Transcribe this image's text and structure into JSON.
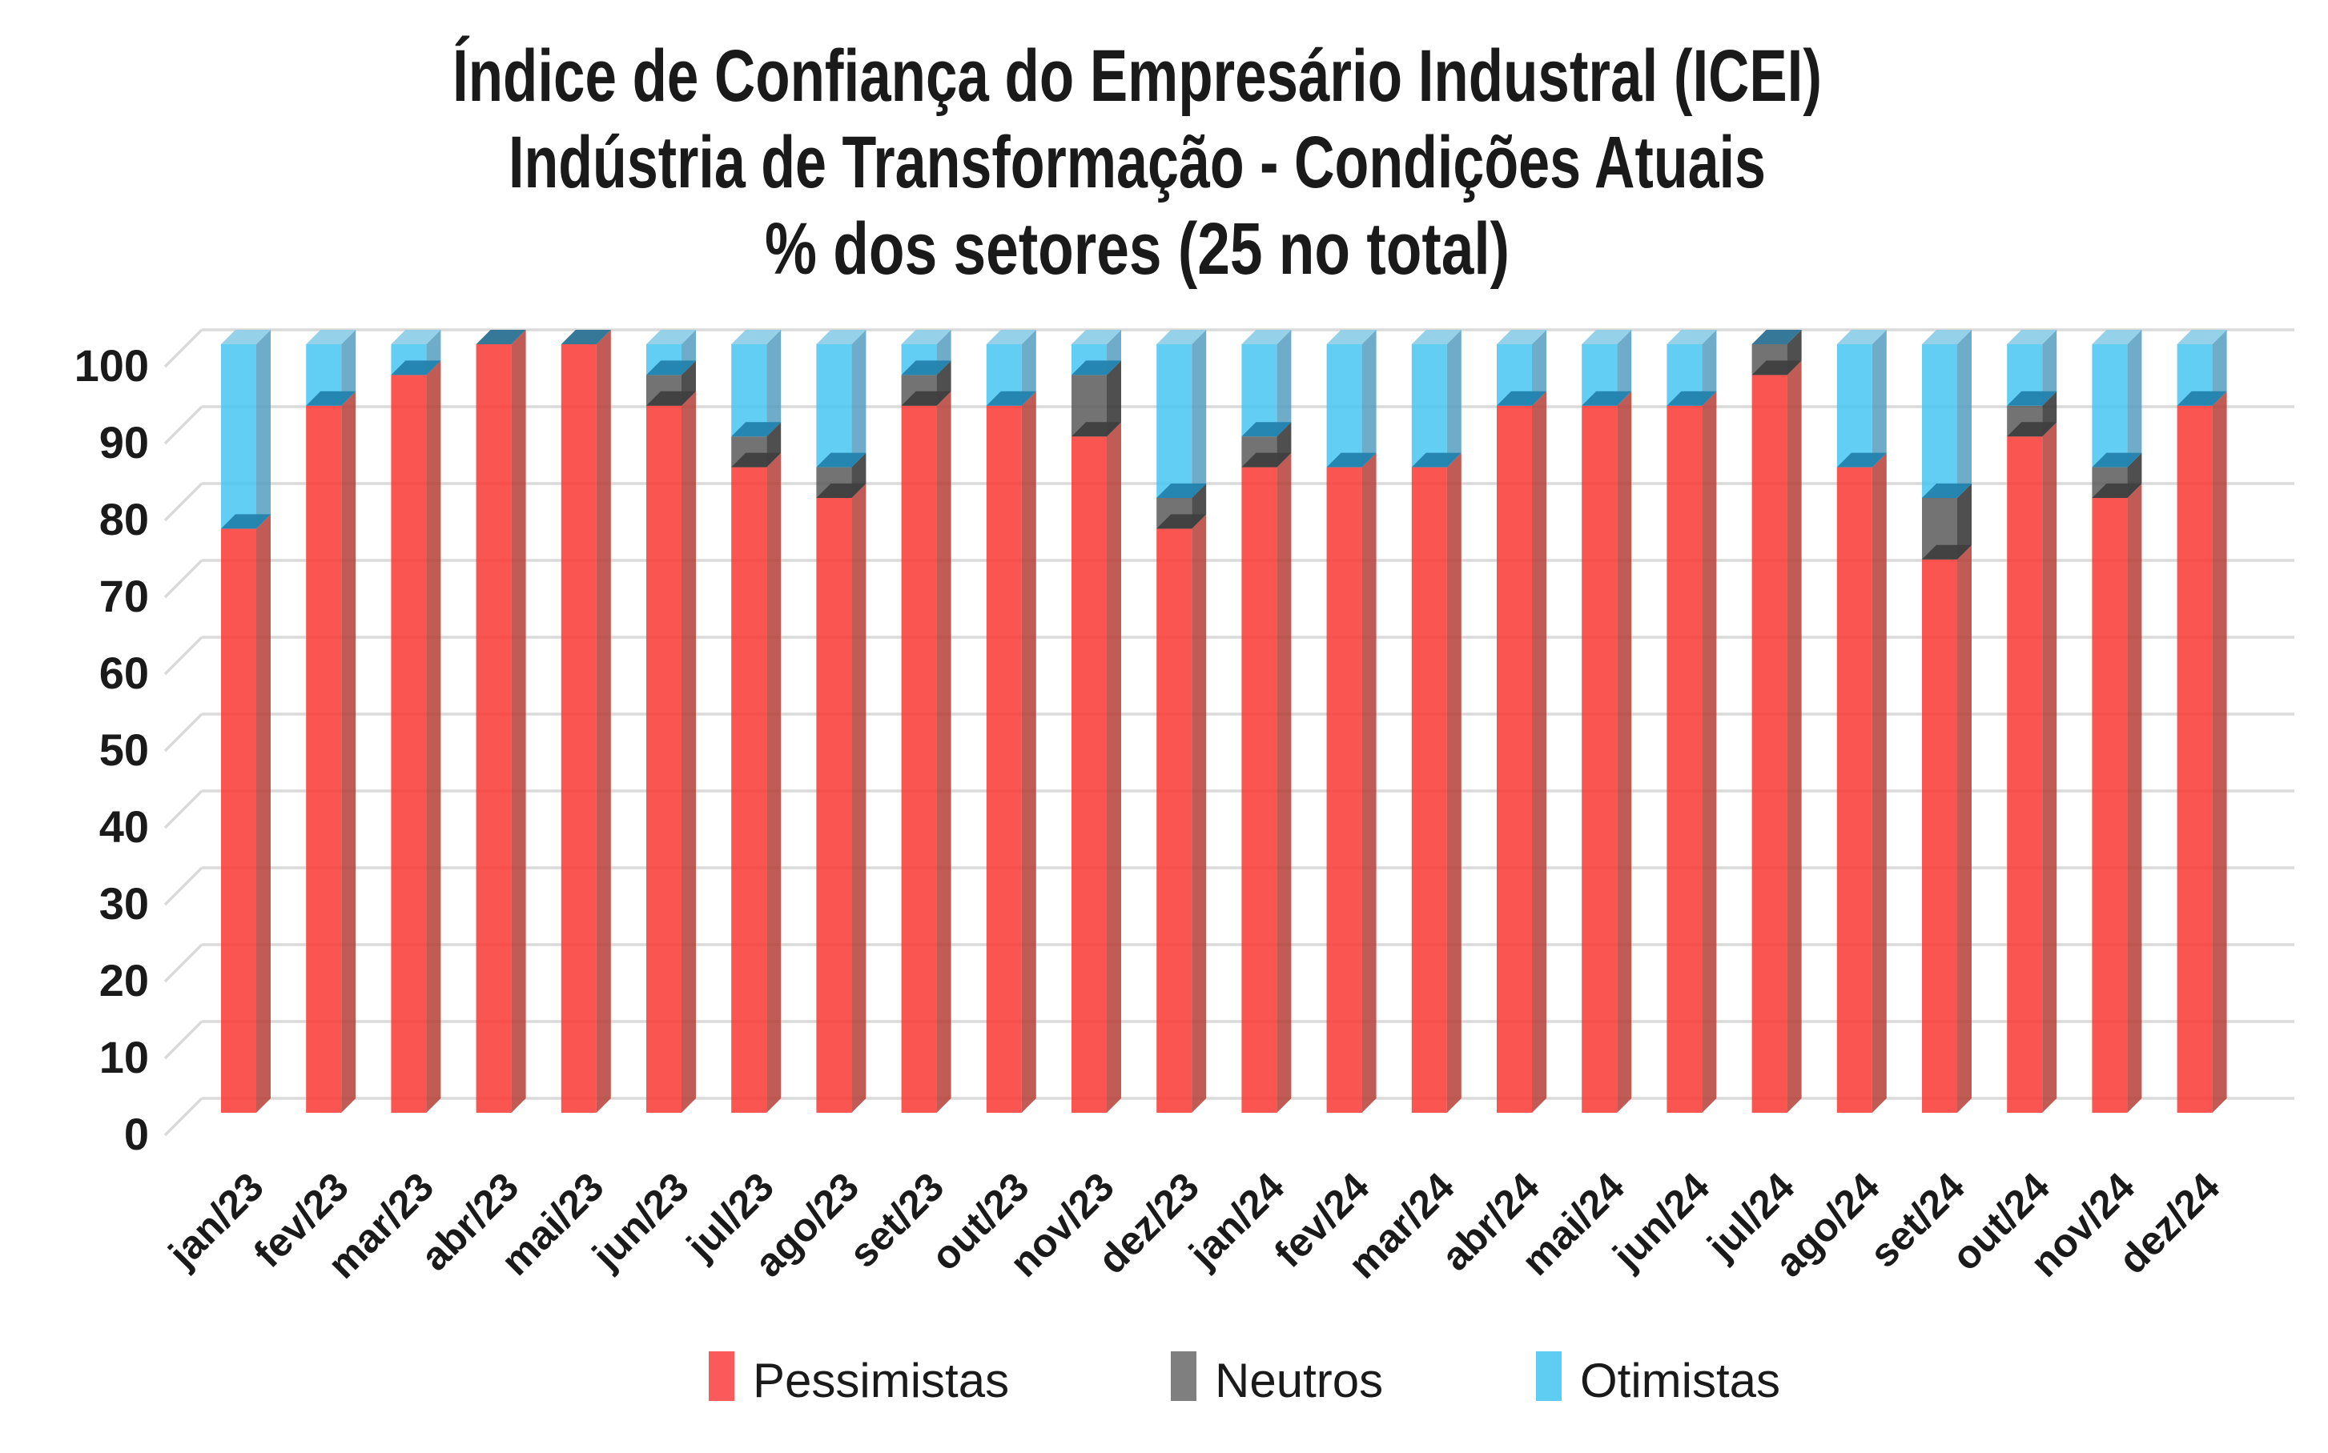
{
  "title": {
    "line1": "Índice de Confiança do Empresário Industral (ICEI)",
    "line2": "Indústria de Transformação - Condições Atuais",
    "line3": "% dos setores (25 no total)"
  },
  "chart_data": {
    "type": "bar",
    "stacked": true,
    "style": "3d",
    "title": "Índice de Confiança do Empresário Industral (ICEI) Indústria de Transformação - Condições Atuais % dos setores (25 no total)",
    "xlabel": "",
    "ylabel": "",
    "ylim": [
      0,
      100
    ],
    "yticks": [
      0,
      10,
      20,
      30,
      40,
      50,
      60,
      70,
      80,
      90,
      100
    ],
    "grid": true,
    "legend_position": "bottom",
    "categories": [
      "jan/23",
      "fev/23",
      "mar/23",
      "abr/23",
      "mai/23",
      "jun/23",
      "jul/23",
      "ago/23",
      "set/23",
      "out/23",
      "nov/23",
      "dez/23",
      "jan/24",
      "fev/24",
      "mar/24",
      "abr/24",
      "mai/24",
      "jun/24",
      "jul/24",
      "ago/24",
      "set/24",
      "out/24",
      "nov/24",
      "dez/24"
    ],
    "series": [
      {
        "name": "Pessimistas",
        "color": "#FA5A5A",
        "values": [
          76,
          92,
          96,
          100,
          100,
          92,
          84,
          80,
          92,
          92,
          88,
          76,
          84,
          84,
          84,
          92,
          92,
          92,
          96,
          84,
          72,
          88,
          80,
          92
        ]
      },
      {
        "name": "Neutros",
        "color": "#7F7F7F",
        "values": [
          0,
          0,
          0,
          0,
          0,
          4,
          4,
          4,
          4,
          0,
          8,
          4,
          4,
          0,
          0,
          0,
          0,
          0,
          4,
          0,
          8,
          4,
          4,
          0
        ]
      },
      {
        "name": "Otimistas",
        "color": "#5FCDF2",
        "values": [
          24,
          8,
          4,
          0,
          0,
          4,
          12,
          16,
          4,
          8,
          4,
          20,
          12,
          16,
          16,
          8,
          8,
          8,
          0,
          16,
          20,
          8,
          16,
          8
        ]
      }
    ]
  }
}
